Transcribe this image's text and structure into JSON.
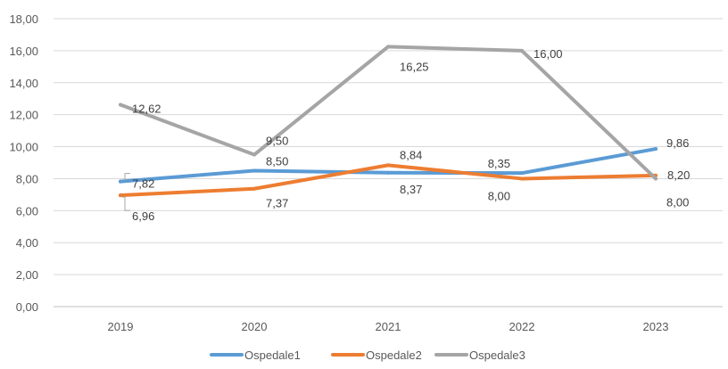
{
  "chart_data": {
    "type": "line",
    "title": "",
    "xlabel": "",
    "ylabel": "",
    "ylim": [
      0,
      18
    ],
    "ytick_labels": [
      "0,00",
      "2,00",
      "4,00",
      "6,00",
      "8,00",
      "10,00",
      "12,00",
      "14,00",
      "16,00",
      "18,00"
    ],
    "categories": [
      "2019",
      "2020",
      "2021",
      "2022",
      "2023"
    ],
    "grid": "horizontal",
    "legend_position": "bottom",
    "series": [
      {
        "name": "Ospedale1",
        "color": "#5B9BD5",
        "values": [
          7.82,
          8.5,
          8.37,
          8.35,
          9.86
        ],
        "labels": [
          "7,82",
          "8,50",
          "8,37",
          "8,35",
          "9,86"
        ]
      },
      {
        "name": "Ospedale2",
        "color": "#ED7D31",
        "values": [
          6.96,
          7.37,
          8.84,
          8.0,
          8.2
        ],
        "labels": [
          "6,96",
          "7,37",
          "8,84",
          "8,00",
          "8,20"
        ]
      },
      {
        "name": "Ospedale3",
        "color": "#A5A5A5",
        "values": [
          12.62,
          9.5,
          16.25,
          16.0,
          8.0
        ],
        "labels": [
          "12,62",
          "9,50",
          "16,25",
          "16,00",
          "8,00"
        ]
      }
    ]
  }
}
